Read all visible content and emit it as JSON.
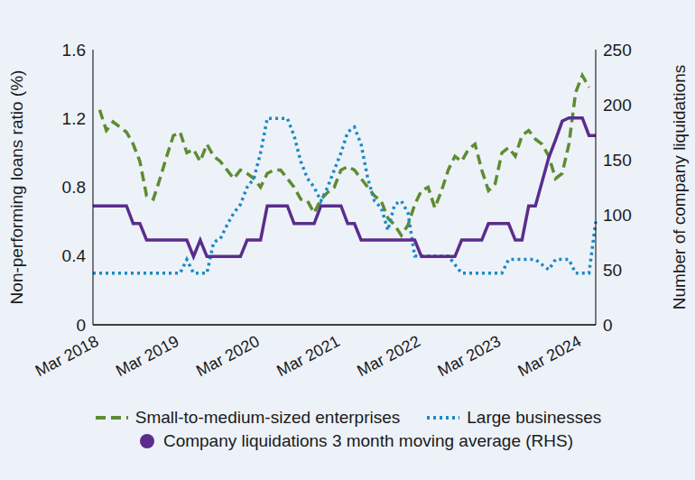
{
  "chart_data": {
    "type": "line",
    "categories": [
      "Mar 2018",
      null,
      null,
      null,
      null,
      null,
      null,
      null,
      null,
      null,
      null,
      null,
      "Mar 2019",
      null,
      null,
      null,
      null,
      null,
      null,
      null,
      null,
      null,
      null,
      null,
      "Mar 2020",
      null,
      null,
      null,
      null,
      null,
      null,
      null,
      null,
      null,
      null,
      null,
      "Mar 2021",
      null,
      null,
      null,
      null,
      null,
      null,
      null,
      null,
      null,
      null,
      null,
      "Mar 2022",
      null,
      null,
      null,
      null,
      null,
      null,
      null,
      null,
      null,
      null,
      null,
      "Mar 2023",
      null,
      null,
      null,
      null,
      null,
      null,
      null,
      null,
      null,
      null,
      null,
      "Mar 2024",
      null,
      null,
      null
    ],
    "series": [
      {
        "name": "Small-to-medium-sized enterprises",
        "color": "#5e8c31",
        "line_style": "dashed",
        "values": [
          null,
          1.25,
          1.13,
          1.18,
          1.15,
          1.12,
          1.05,
          0.95,
          0.75,
          0.73,
          0.85,
          0.98,
          1.1,
          1.12,
          1.0,
          1.02,
          0.95,
          1.05,
          0.98,
          0.95,
          0.9,
          0.85,
          0.9,
          0.88,
          0.85,
          0.8,
          0.88,
          0.9,
          0.9,
          0.85,
          0.8,
          0.73,
          0.72,
          0.65,
          0.73,
          0.77,
          0.8,
          0.9,
          0.92,
          0.9,
          0.85,
          0.8,
          0.75,
          0.72,
          0.62,
          0.58,
          0.52,
          0.58,
          0.7,
          0.78,
          0.8,
          0.68,
          0.78,
          0.9,
          0.98,
          0.95,
          1.02,
          1.05,
          0.9,
          0.78,
          0.82,
          1.0,
          1.03,
          0.98,
          1.1,
          1.13,
          1.08,
          1.05,
          0.98,
          0.85,
          0.88,
          1.05,
          1.35,
          1.45,
          1.38,
          null
        ]
      },
      {
        "name": "Large businesses",
        "color": "#1b8ac4",
        "line_style": "dotted",
        "values": [
          0.3,
          0.3,
          0.3,
          0.3,
          0.3,
          0.3,
          0.3,
          0.3,
          0.3,
          0.3,
          0.3,
          0.3,
          0.3,
          0.3,
          0.38,
          0.3,
          0.3,
          0.3,
          0.48,
          0.5,
          0.58,
          0.65,
          0.7,
          0.8,
          0.85,
          1.0,
          1.2,
          1.2,
          1.2,
          1.2,
          1.1,
          0.95,
          0.85,
          0.8,
          0.72,
          0.8,
          0.9,
          1.0,
          1.12,
          1.15,
          1.05,
          0.85,
          0.72,
          0.68,
          0.55,
          0.7,
          0.72,
          0.65,
          0.4,
          0.4,
          0.4,
          0.4,
          0.4,
          0.4,
          0.35,
          0.3,
          0.3,
          0.3,
          0.3,
          0.3,
          0.3,
          0.3,
          0.38,
          0.38,
          0.38,
          0.38,
          0.38,
          0.35,
          0.32,
          0.38,
          0.38,
          0.38,
          0.3,
          0.3,
          0.3,
          0.6
        ]
      },
      {
        "name": "Company liquidations 3 month moving average (RHS)",
        "color": "#5a2d8c",
        "line_style": "solid",
        "marker": "circle",
        "axis": "y2",
        "values": [
          108,
          108,
          108,
          108,
          108,
          108,
          92,
          92,
          77,
          77,
          77,
          77,
          77,
          77,
          77,
          62,
          77,
          62,
          62,
          62,
          62,
          62,
          62,
          77,
          77,
          77,
          108,
          108,
          108,
          108,
          92,
          92,
          92,
          92,
          108,
          108,
          108,
          108,
          92,
          92,
          77,
          77,
          77,
          77,
          77,
          77,
          77,
          77,
          77,
          62,
          62,
          62,
          62,
          62,
          62,
          77,
          77,
          77,
          77,
          92,
          92,
          92,
          92,
          77,
          77,
          108,
          108,
          130,
          152,
          168,
          185,
          188,
          188,
          188,
          172,
          172
        ]
      }
    ],
    "y_label": "Non-performing loans ratio (%)",
    "y2_label": "Number of company liquidations",
    "ylim": [
      0,
      1.6
    ],
    "yticks": [
      0,
      0.4,
      0.8,
      1.2,
      1.6
    ],
    "y2lim": [
      0,
      250
    ],
    "y2ticks": [
      0,
      50,
      100,
      150,
      200,
      250
    ],
    "grid": false,
    "legend": "bottom"
  }
}
